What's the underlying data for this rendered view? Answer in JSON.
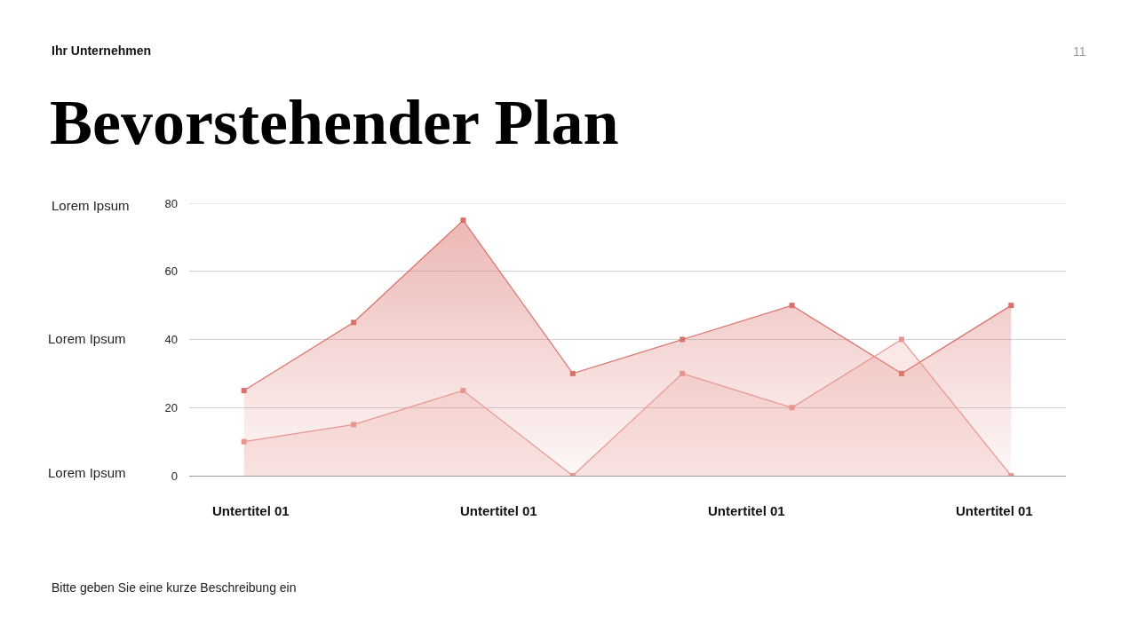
{
  "chart_data": {
    "type": "area",
    "title": "Bevorstehender Plan",
    "categories": [
      null,
      null,
      null,
      null,
      null,
      null,
      null,
      null
    ],
    "series": [
      {
        "color": "#d9706a",
        "values": [
          25,
          45,
          75,
          30,
          40,
          50,
          30,
          50
        ]
      },
      {
        "color": "#e8958f",
        "values": [
          10,
          15,
          25,
          0,
          30,
          20,
          40,
          0
        ]
      }
    ],
    "ylim": [
      0,
      80
    ],
    "yticks": [
      0,
      20,
      40,
      60,
      80
    ],
    "grid": "y",
    "marker": "square",
    "line_style": "solid",
    "annotations": [
      "Ihr Unternehmen",
      "11",
      "Lorem Ipsum",
      "Lorem Ipsum",
      "Lorem Ipsum",
      "Untertitel 01",
      "Untertitel 01",
      "Untertitel 01",
      "Untertitel 01",
      "Bitte geben Sie eine kurze Beschreibung ein"
    ]
  }
}
